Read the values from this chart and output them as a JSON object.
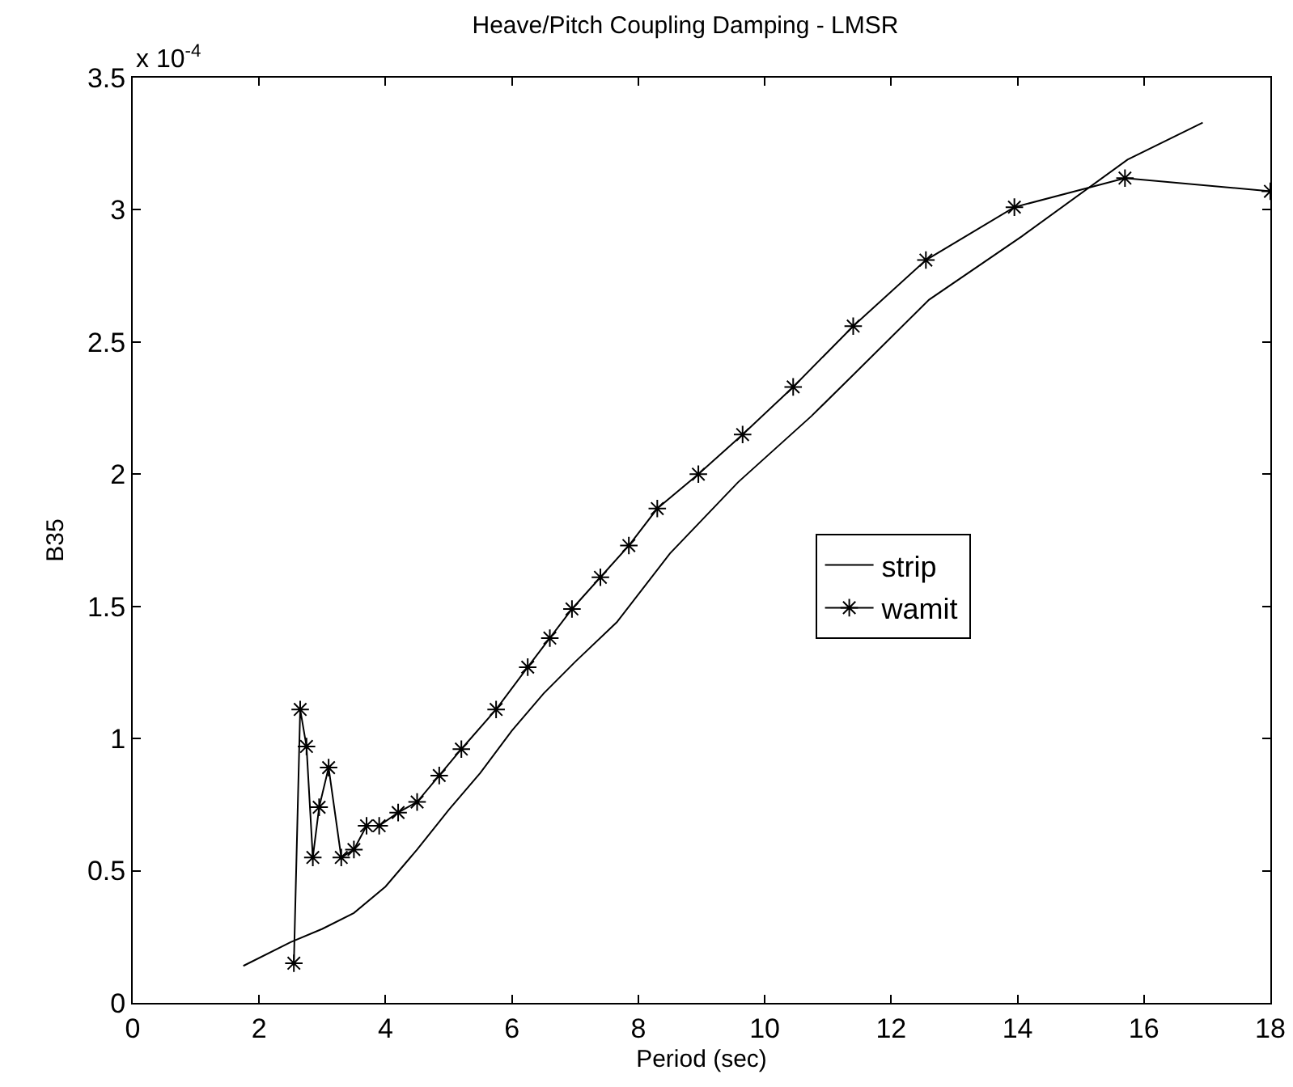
{
  "chart_data": {
    "type": "line",
    "title": "Heave/Pitch Coupling Damping - LMSR",
    "xlabel": "Period (sec)",
    "ylabel": "B35",
    "annotations": [
      "x 10$^{-4}$"
    ],
    "xlim": [
      0,
      18
    ],
    "xticks": [
      0,
      2,
      4,
      6,
      8,
      10,
      12,
      14,
      16,
      18
    ],
    "ylim": [
      0,
      3.5
    ],
    "yticks": [
      0,
      0.5,
      1,
      1.5,
      2,
      2.5,
      3,
      3.5
    ],
    "grid": false,
    "legend": "right",
    "line_style": "solid",
    "series": [
      {
        "name": "strip",
        "color": "#000000",
        "marker": "none",
        "x": [
          1.75,
          2.5,
          3.0,
          3.5,
          4.0,
          4.5,
          5.0,
          5.5,
          6.0,
          6.5,
          7.0,
          7.66,
          8.5,
          9.58,
          10.74,
          11.42,
          12.6,
          14.07,
          15.74,
          16.93
        ],
        "values": [
          0.14,
          0.23,
          0.28,
          0.34,
          0.44,
          0.58,
          0.73,
          0.87,
          1.03,
          1.17,
          1.29,
          1.44,
          1.7,
          1.97,
          2.22,
          2.38,
          2.66,
          2.9,
          3.19,
          3.33
        ]
      },
      {
        "name": "wamit",
        "color": "#000000",
        "marker": "cross",
        "x": [
          2.55,
          2.65,
          2.75,
          2.85,
          2.95,
          3.1,
          3.3,
          3.5,
          3.7,
          3.9,
          4.2,
          4.5,
          4.85,
          5.2,
          5.75,
          6.25,
          6.6,
          6.95,
          7.4,
          7.85,
          8.3,
          8.95,
          9.65,
          10.45,
          11.4,
          12.55,
          13.95,
          15.7,
          18
        ],
        "values": [
          0.15,
          1.11,
          0.97,
          0.55,
          0.74,
          0.89,
          0.55,
          0.58,
          0.67,
          0.67,
          0.72,
          0.76,
          0.86,
          0.96,
          1.11,
          1.27,
          1.38,
          1.49,
          1.61,
          1.73,
          1.87,
          2.0,
          2.15,
          2.33,
          2.56,
          2.81,
          3.01,
          3.12,
          3.07
        ]
      }
    ]
  }
}
